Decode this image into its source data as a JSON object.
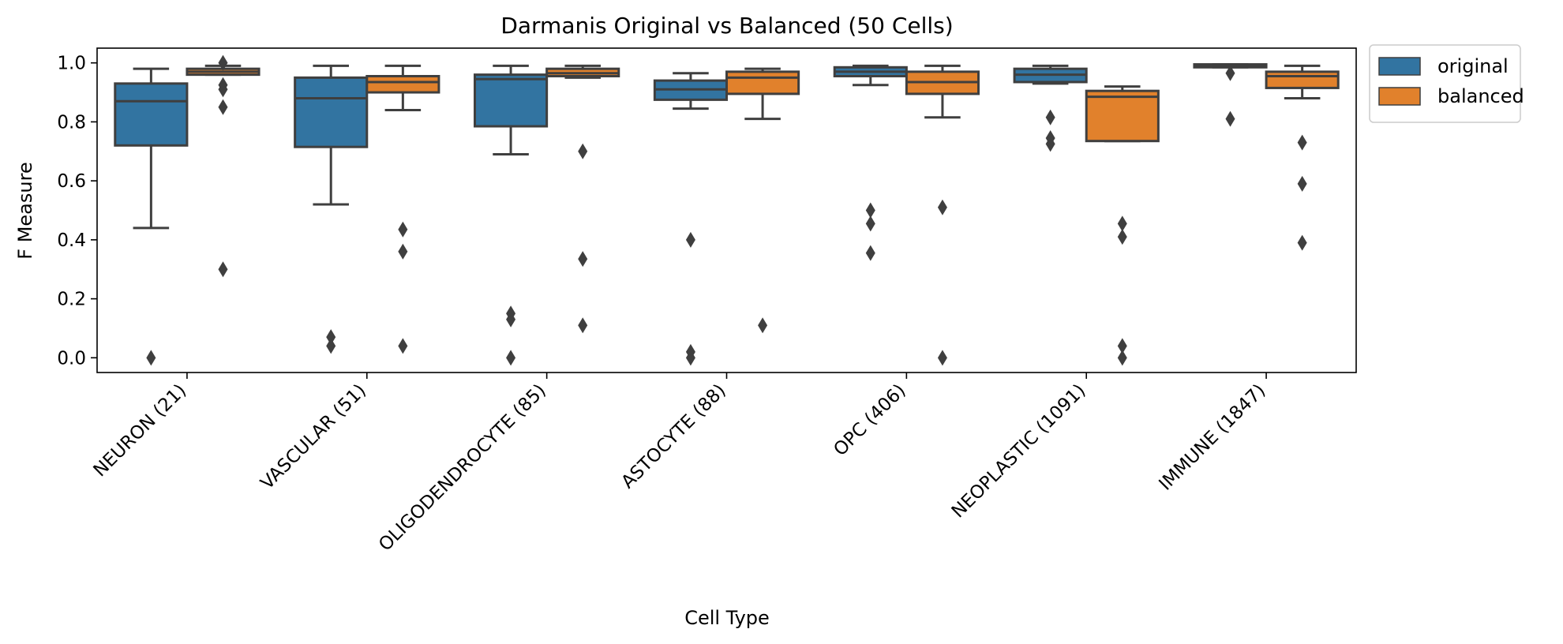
{
  "chart_data": {
    "type": "box",
    "title": "Darmanis Original vs Balanced (50 Cells)",
    "xlabel": "Cell Type",
    "ylabel": "F Measure",
    "ylim": [
      -0.05,
      1.05
    ],
    "yticks": [
      "0.0",
      "0.2",
      "0.4",
      "0.6",
      "0.8",
      "1.0"
    ],
    "categories": [
      "NEURON (21)",
      "VASCULAR (51)",
      "OLIGODENDROCYTE (85)",
      "ASTOCYTE (88)",
      "OPC (406)",
      "NEOPLASTIC (1091)",
      "IMMUNE (1847)"
    ],
    "category_colors": [
      "#b22222",
      "#000000",
      "#000000",
      "#000000",
      "#000000",
      "#000000",
      "#000000"
    ],
    "legend": {
      "position": "outside-top-right",
      "entries": [
        "original",
        "balanced"
      ]
    },
    "series": [
      {
        "name": "original",
        "color": "#3274a1",
        "boxes": [
          {
            "whislo": 0.44,
            "q1": 0.72,
            "med": 0.87,
            "q3": 0.93,
            "whishi": 0.98,
            "fliers": [
              0.0
            ]
          },
          {
            "whislo": 0.52,
            "q1": 0.715,
            "med": 0.88,
            "q3": 0.95,
            "whishi": 0.99,
            "fliers": [
              0.07,
              0.04
            ]
          },
          {
            "whislo": 0.69,
            "q1": 0.785,
            "med": 0.945,
            "q3": 0.96,
            "whishi": 0.99,
            "fliers": [
              0.15,
              0.13,
              0.0
            ]
          },
          {
            "whislo": 0.845,
            "q1": 0.875,
            "med": 0.91,
            "q3": 0.94,
            "whishi": 0.965,
            "fliers": [
              0.4,
              0.02,
              0.0
            ]
          },
          {
            "whislo": 0.925,
            "q1": 0.955,
            "med": 0.97,
            "q3": 0.985,
            "whishi": 0.99,
            "fliers": [
              0.5,
              0.455,
              0.355
            ]
          },
          {
            "whislo": 0.93,
            "q1": 0.935,
            "med": 0.96,
            "q3": 0.98,
            "whishi": 0.99,
            "fliers": [
              0.815,
              0.745,
              0.725
            ]
          },
          {
            "whislo": 0.985,
            "q1": 0.985,
            "med": 0.99,
            "q3": 0.995,
            "whishi": 0.995,
            "fliers": [
              0.965,
              0.81
            ]
          }
        ]
      },
      {
        "name": "balanced",
        "color": "#e1812c",
        "boxes": [
          {
            "whislo": 0.96,
            "q1": 0.96,
            "med": 0.97,
            "q3": 0.98,
            "whishi": 0.99,
            "fliers": [
              1.0,
              0.925,
              0.91,
              0.85,
              0.3
            ]
          },
          {
            "whislo": 0.84,
            "q1": 0.9,
            "med": 0.935,
            "q3": 0.955,
            "whishi": 0.99,
            "fliers": [
              0.435,
              0.36,
              0.04
            ]
          },
          {
            "whislo": 0.95,
            "q1": 0.955,
            "med": 0.965,
            "q3": 0.98,
            "whishi": 0.99,
            "fliers": [
              0.7,
              0.335,
              0.11
            ]
          },
          {
            "whislo": 0.81,
            "q1": 0.895,
            "med": 0.95,
            "q3": 0.97,
            "whishi": 0.98,
            "fliers": [
              0.11
            ]
          },
          {
            "whislo": 0.815,
            "q1": 0.895,
            "med": 0.935,
            "q3": 0.97,
            "whishi": 0.99,
            "fliers": [
              0.51,
              0.0
            ]
          },
          {
            "whislo": 0.735,
            "q1": 0.735,
            "med": 0.885,
            "q3": 0.905,
            "whishi": 0.92,
            "fliers": [
              0.455,
              0.41,
              0.04,
              0.0
            ]
          },
          {
            "whislo": 0.88,
            "q1": 0.915,
            "med": 0.955,
            "q3": 0.97,
            "whishi": 0.99,
            "fliers": [
              0.73,
              0.59,
              0.39
            ]
          }
        ]
      }
    ]
  }
}
